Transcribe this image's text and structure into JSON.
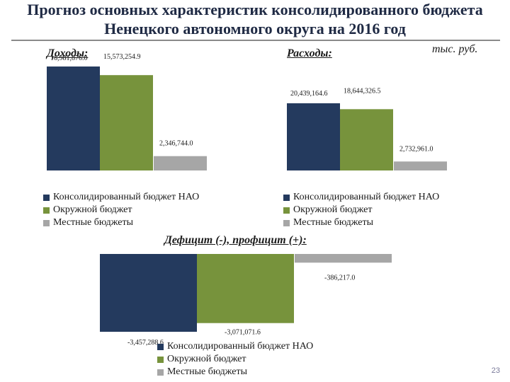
{
  "title_line1": "Прогноз основных характеристик консолидированного бюджета",
  "title_line2": "Ненецкого автономного округа на 2016 год",
  "unit": "тыс. руб.",
  "page_number": "23",
  "colors": {
    "consolidated": "#243a5e",
    "district": "#77933c",
    "local": "#a6a6a6",
    "title": "#1f2a44"
  },
  "chart_data": [
    {
      "type": "bar",
      "title": "Доходы:",
      "categories": [
        "Консолидированный бюджет НАО",
        "Окружной бюджет",
        "Местные бюджеты"
      ],
      "values": [
        16981876.0,
        15573254.9,
        2346744.0
      ],
      "value_labels": [
        "16,981,876.0",
        "15,573,254.9",
        "2,346,744.0"
      ],
      "legend": [
        "Консолидированный бюджет НАО",
        "Окружной бюджет",
        "Местные бюджеты"
      ]
    },
    {
      "type": "bar",
      "title": "Расходы:",
      "categories": [
        "Консолидированный бюджет НАО",
        "Окружной бюджет",
        "Местные бюджеты"
      ],
      "values": [
        20439164.6,
        18644326.5,
        2732961.0
      ],
      "value_labels": [
        "20,439,164.6",
        "18,644,326.5",
        "2,732,961.0"
      ],
      "legend": [
        "Консолидированный бюджет НАО",
        "Окружной бюджет",
        "Местные бюджеты"
      ]
    },
    {
      "type": "bar",
      "title": "Дефицит (-), профицит (+):",
      "categories": [
        "Консолидированный бюджет НАО",
        "Окружной бюджет",
        "Местные бюджеты"
      ],
      "values": [
        -3457288.6,
        -3071071.6,
        -386217.0
      ],
      "value_labels": [
        "-3,457,288.6",
        "-3,071,071.6",
        "-386,217.0"
      ],
      "legend": [
        "Консолидированный бюджет НАО",
        "Окружной бюджет",
        "Местные бюджеты"
      ]
    }
  ]
}
